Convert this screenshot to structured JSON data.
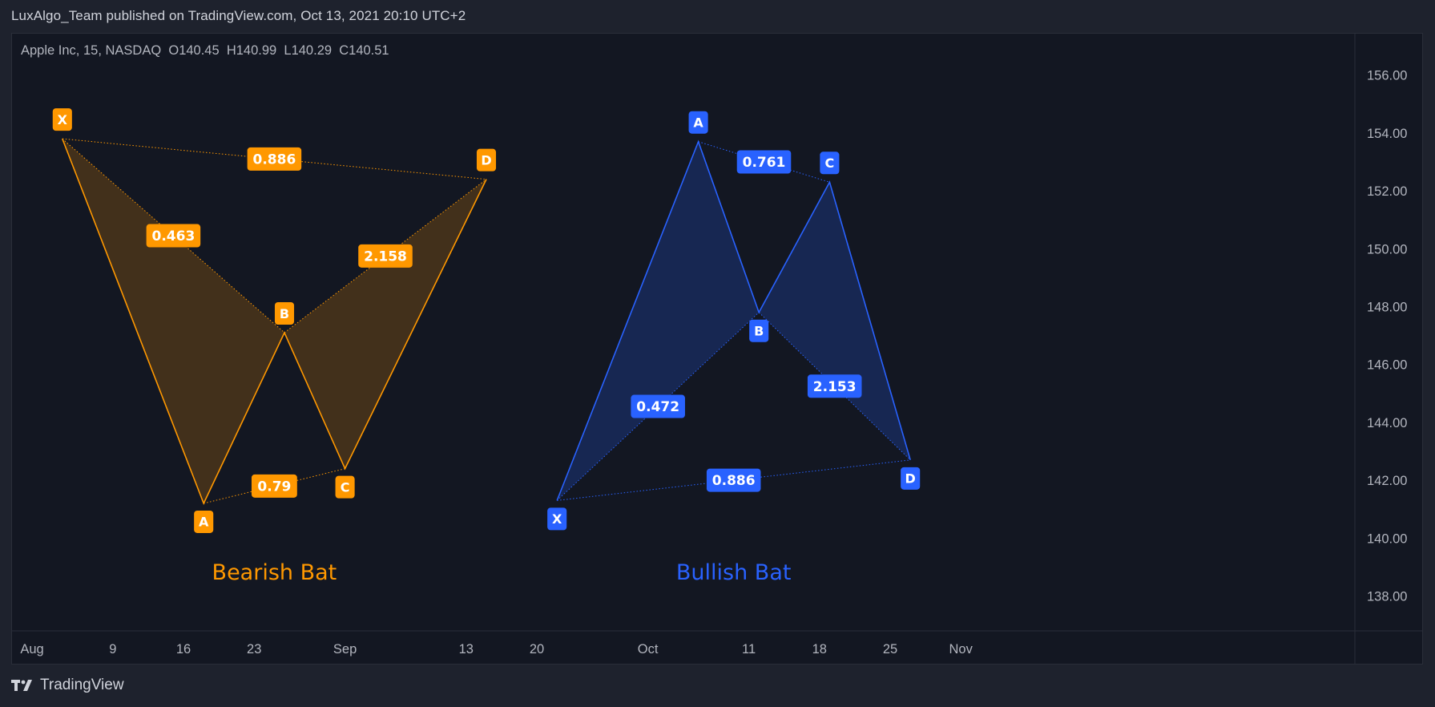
{
  "header": {
    "published_text": "LuxAlgo_Team published on TradingView.com, Oct 13, 2021 20:10 UTC+2"
  },
  "legend": {
    "symbol": "Apple Inc, 15, NASDAQ",
    "open_label": "O",
    "open": "140.45",
    "high_label": "H",
    "high": "140.99",
    "low_label": "L",
    "low": "140.29",
    "close_label": "C",
    "close": "140.51"
  },
  "footer": {
    "brand": "TradingView"
  },
  "colors": {
    "bearish": "#ff9800",
    "bullish": "#2962ff",
    "background": "#131722",
    "axis_text": "#b2b5be"
  },
  "chart_data": {
    "type": "line",
    "ylim": [
      137,
      157.5
    ],
    "yticks": [
      "138.00",
      "140.00",
      "142.00",
      "144.00",
      "146.00",
      "148.00",
      "150.00",
      "152.00",
      "154.00",
      "156.00"
    ],
    "ytick_values": [
      138,
      140,
      142,
      144,
      146,
      148,
      150,
      152,
      154,
      156
    ],
    "x_domain_days": [
      0,
      89
    ],
    "xticks": [
      {
        "label": "Aug",
        "day": 0
      },
      {
        "label": "9",
        "day": 8
      },
      {
        "label": "16",
        "day": 15
      },
      {
        "label": "23",
        "day": 22
      },
      {
        "label": "Sep",
        "day": 31
      },
      {
        "label": "13",
        "day": 43
      },
      {
        "label": "20",
        "day": 50
      },
      {
        "label": "Oct",
        "day": 61
      },
      {
        "label": "11",
        "day": 71
      },
      {
        "label": "18",
        "day": 78
      },
      {
        "label": "25",
        "day": 85
      },
      {
        "label": "Nov",
        "day": 92
      }
    ],
    "patterns": [
      {
        "name": "Bearish Bat",
        "direction": "bearish",
        "points": [
          {
            "label": "X",
            "day": 3,
            "y": 153.8
          },
          {
            "label": "A",
            "day": 17,
            "y": 141.2
          },
          {
            "label": "B",
            "day": 25,
            "y": 147.1
          },
          {
            "label": "C",
            "day": 31,
            "y": 142.4
          },
          {
            "label": "D",
            "day": 45,
            "y": 152.4
          }
        ],
        "ratios": [
          {
            "value": "0.463",
            "from": "X",
            "to": "B"
          },
          {
            "value": "0.79",
            "from": "A",
            "to": "C"
          },
          {
            "value": "2.158",
            "from": "B",
            "to": "D"
          },
          {
            "value": "0.886",
            "from": "X",
            "to": "D"
          }
        ]
      },
      {
        "name": "Bullish Bat",
        "direction": "bullish",
        "points": [
          {
            "label": "X",
            "day": 52,
            "y": 141.3
          },
          {
            "label": "A",
            "day": 66,
            "y": 153.7
          },
          {
            "label": "B",
            "day": 72,
            "y": 147.8
          },
          {
            "label": "C",
            "day": 79,
            "y": 152.3
          },
          {
            "label": "D",
            "day": 87,
            "y": 142.7
          }
        ],
        "ratios": [
          {
            "value": "0.472",
            "from": "X",
            "to": "B"
          },
          {
            "value": "0.761",
            "from": "A",
            "to": "C"
          },
          {
            "value": "2.153",
            "from": "B",
            "to": "D"
          },
          {
            "value": "0.886",
            "from": "X",
            "to": "D"
          }
        ]
      }
    ]
  }
}
